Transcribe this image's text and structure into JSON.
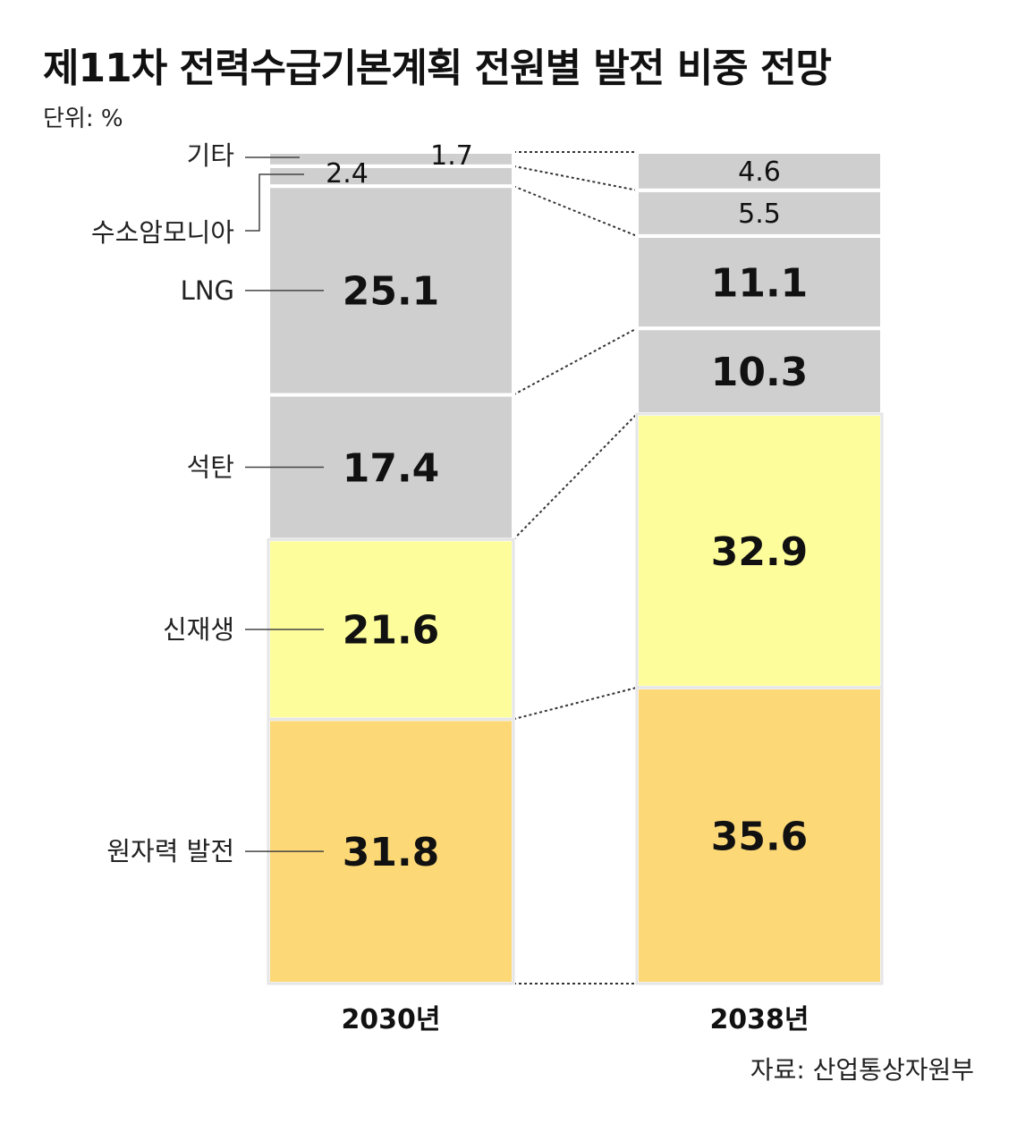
{
  "title": "제11차 전력수급기본계획 전원별 발전 비중 전망",
  "unit_label": "단위: %",
  "source": "자료: 산업통상자원부",
  "colors": {
    "gray": "#cfcfcf",
    "renewable": "#fdfd9c",
    "nuclear": "#fdd876",
    "connector": "#333333"
  },
  "chart_data": {
    "type": "bar",
    "stacked": true,
    "categories": [
      "2030년",
      "2038년"
    ],
    "series": [
      {
        "name": "원자력 발전",
        "values": [
          31.8,
          35.6
        ],
        "color": "#fdd876"
      },
      {
        "name": "신재생",
        "values": [
          21.6,
          32.9
        ],
        "color": "#fdfd9c"
      },
      {
        "name": "석탄",
        "values": [
          17.4,
          10.3
        ],
        "color": "#cfcfcf"
      },
      {
        "name": "LNG",
        "values": [
          25.1,
          11.1
        ],
        "color": "#cfcfcf"
      },
      {
        "name": "수소암모니아",
        "values": [
          2.4,
          5.5
        ],
        "color": "#cfcfcf"
      },
      {
        "name": "기타",
        "values": [
          1.7,
          4.6
        ],
        "color": "#cfcfcf"
      }
    ],
    "ylabel": "",
    "legend": "left"
  }
}
